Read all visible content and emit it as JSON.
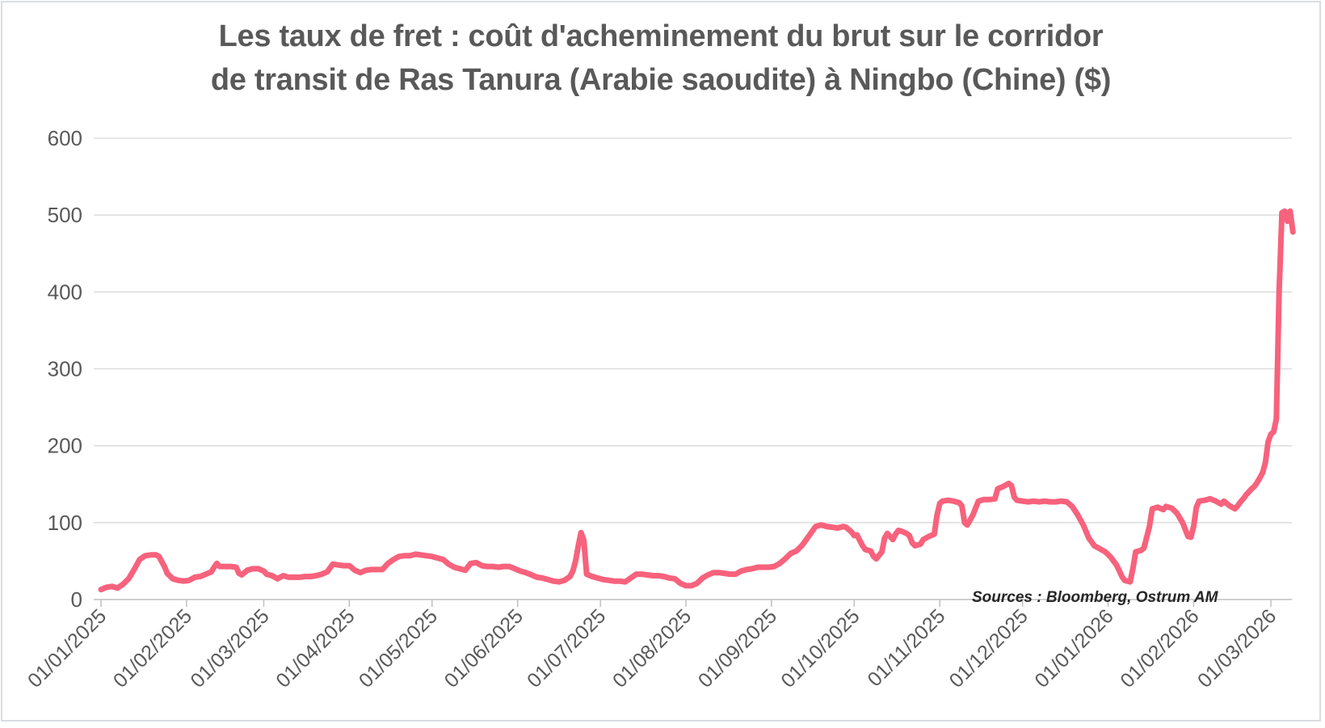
{
  "window": {
    "background": "#ffffff",
    "frame_border_color": "#d9dce0"
  },
  "title": {
    "line1": "Les taux de fret : coût d'acheminement du brut sur le corridor",
    "line2": "de transit de Ras Tanura (Arabie saoudite) à Ningbo (Chine) ($)",
    "color": "#595959"
  },
  "source_note": {
    "text": "Sources : Bloomberg, Ostrum AM",
    "color": "#262626"
  },
  "chart_data": {
    "type": "line",
    "title": "Les taux de fret : coût d'acheminement du brut sur le corridor de transit de Ras Tanura (Arabie saoudite) à Ningbo (Chine) ($)",
    "unit": "$",
    "grid": "horizontal",
    "legend": "none",
    "colors": {
      "line": "#f7627c",
      "gridline": "#d9d9d9",
      "axis": "#bfbfbf",
      "tick_label": "#595959"
    },
    "y_axis": {
      "ticks": [
        0,
        100,
        200,
        300,
        400,
        500,
        600
      ],
      "range": [
        0,
        600
      ]
    },
    "x_axis": {
      "tick_labels": [
        "01/01/2025",
        "01/02/2025",
        "01/03/2025",
        "01/04/2025",
        "01/05/2025",
        "01/06/2025",
        "01/07/2025",
        "01/08/2025",
        "01/09/2025",
        "01/10/2025",
        "01/11/2025",
        "01/12/2025",
        "01/01/2026",
        "01/02/2026",
        "01/03/2026"
      ],
      "range": [
        "01/01/2025",
        "09/03/2026"
      ]
    },
    "series": [
      {
        "dates": [
          "2025-01-01",
          "2025-01-03",
          "2025-01-05",
          "2025-01-07",
          "2025-01-09",
          "2025-01-11",
          "2025-01-13",
          "2025-01-15",
          "2025-01-17",
          "2025-01-19",
          "2025-01-21",
          "2025-01-22",
          "2025-01-24",
          "2025-01-25",
          "2025-01-27",
          "2025-01-29",
          "2025-01-31",
          "2025-02-02",
          "2025-02-04",
          "2025-02-06",
          "2025-02-08",
          "2025-02-10",
          "2025-02-11",
          "2025-02-12",
          "2025-02-13",
          "2025-02-15",
          "2025-02-17",
          "2025-02-19",
          "2025-02-20",
          "2025-02-21",
          "2025-02-23",
          "2025-02-25",
          "2025-02-27",
          "2025-03-01",
          "2025-03-02",
          "2025-03-04",
          "2025-03-06",
          "2025-03-08",
          "2025-03-10",
          "2025-03-12",
          "2025-03-14",
          "2025-03-16",
          "2025-03-18",
          "2025-03-20",
          "2025-03-22",
          "2025-03-24",
          "2025-03-26",
          "2025-03-28",
          "2025-03-30",
          "2025-04-01",
          "2025-04-03",
          "2025-04-05",
          "2025-04-07",
          "2025-04-09",
          "2025-04-11",
          "2025-04-13",
          "2025-04-15",
          "2025-04-17",
          "2025-04-19",
          "2025-04-21",
          "2025-04-23",
          "2025-04-25",
          "2025-04-27",
          "2025-04-29",
          "2025-05-01",
          "2025-05-03",
          "2025-05-05",
          "2025-05-07",
          "2025-05-09",
          "2025-05-11",
          "2025-05-13",
          "2025-05-15",
          "2025-05-17",
          "2025-05-19",
          "2025-05-21",
          "2025-05-23",
          "2025-05-25",
          "2025-05-27",
          "2025-05-29",
          "2025-05-31",
          "2025-06-02",
          "2025-06-04",
          "2025-06-06",
          "2025-06-08",
          "2025-06-10",
          "2025-06-12",
          "2025-06-14",
          "2025-06-16",
          "2025-06-18",
          "2025-06-20",
          "2025-06-21",
          "2025-06-22",
          "2025-06-23",
          "2025-06-24",
          "2025-06-25",
          "2025-06-26",
          "2025-06-28",
          "2025-06-30",
          "2025-07-02",
          "2025-07-04",
          "2025-07-06",
          "2025-07-08",
          "2025-07-10",
          "2025-07-12",
          "2025-07-14",
          "2025-07-16",
          "2025-07-18",
          "2025-07-20",
          "2025-07-22",
          "2025-07-24",
          "2025-07-26",
          "2025-07-28",
          "2025-07-30",
          "2025-08-01",
          "2025-08-03",
          "2025-08-05",
          "2025-08-07",
          "2025-08-09",
          "2025-08-11",
          "2025-08-13",
          "2025-08-15",
          "2025-08-17",
          "2025-08-19",
          "2025-08-21",
          "2025-08-23",
          "2025-08-25",
          "2025-08-27",
          "2025-08-29",
          "2025-08-31",
          "2025-09-02",
          "2025-09-04",
          "2025-09-06",
          "2025-09-08",
          "2025-09-10",
          "2025-09-12",
          "2025-09-14",
          "2025-09-16",
          "2025-09-17",
          "2025-09-19",
          "2025-09-21",
          "2025-09-23",
          "2025-09-25",
          "2025-09-27",
          "2025-09-28",
          "2025-09-30",
          "2025-10-01",
          "2025-10-02",
          "2025-10-04",
          "2025-10-05",
          "2025-10-07",
          "2025-10-08",
          "2025-10-09",
          "2025-10-11",
          "2025-10-12",
          "2025-10-13",
          "2025-10-15",
          "2025-10-16",
          "2025-10-17",
          "2025-10-18",
          "2025-10-20",
          "2025-10-21",
          "2025-10-22",
          "2025-10-23",
          "2025-10-25",
          "2025-10-26",
          "2025-10-28",
          "2025-10-30",
          "2025-10-31",
          "2025-11-01",
          "2025-11-02",
          "2025-11-04",
          "2025-11-06",
          "2025-11-08",
          "2025-11-09",
          "2025-11-10",
          "2025-11-11",
          "2025-11-13",
          "2025-11-15",
          "2025-11-17",
          "2025-11-19",
          "2025-11-21",
          "2025-11-22",
          "2025-11-24",
          "2025-11-25",
          "2025-11-26",
          "2025-11-27",
          "2025-11-28",
          "2025-11-29",
          "2025-12-01",
          "2025-12-03",
          "2025-12-05",
          "2025-12-07",
          "2025-12-09",
          "2025-12-11",
          "2025-12-13",
          "2025-12-15",
          "2025-12-17",
          "2025-12-19",
          "2025-12-21",
          "2025-12-23",
          "2025-12-25",
          "2025-12-27",
          "2025-12-29",
          "2025-12-31",
          "2026-01-02",
          "2026-01-04",
          "2026-01-05",
          "2026-01-06",
          "2026-01-07",
          "2026-01-09",
          "2026-01-10",
          "2026-01-11",
          "2026-01-13",
          "2026-01-14",
          "2026-01-16",
          "2026-01-17",
          "2026-01-19",
          "2026-01-21",
          "2026-01-22",
          "2026-01-24",
          "2026-01-26",
          "2026-01-28",
          "2026-01-29",
          "2026-01-30",
          "2026-01-31",
          "2026-02-01",
          "2026-02-02",
          "2026-02-03",
          "2026-02-05",
          "2026-02-07",
          "2026-02-09",
          "2026-02-11",
          "2026-02-12",
          "2026-02-14",
          "2026-02-16",
          "2026-02-17",
          "2026-02-18",
          "2026-02-19",
          "2026-02-20",
          "2026-02-21",
          "2026-02-22",
          "2026-02-23",
          "2026-02-24",
          "2026-02-25",
          "2026-02-26",
          "2026-02-27",
          "2026-02-28",
          "2026-03-01",
          "2026-03-02",
          "2026-03-03",
          "2026-03-04",
          "2026-03-05",
          "2026-03-06",
          "2026-03-07",
          "2026-03-08",
          "2026-03-09"
        ],
        "values": [
          13,
          16,
          17,
          15,
          20,
          27,
          39,
          52,
          57,
          58,
          58,
          56,
          43,
          34,
          27,
          25,
          24,
          25,
          29,
          30,
          33,
          36,
          42,
          47,
          43,
          43,
          43,
          42,
          34,
          32,
          38,
          40,
          40,
          37,
          33,
          31,
          27,
          31,
          29,
          29,
          29,
          30,
          30,
          31,
          33,
          36,
          46,
          45,
          44,
          44,
          38,
          35,
          38,
          39,
          39,
          39,
          47,
          52,
          56,
          57,
          57,
          59,
          58,
          57,
          56,
          54,
          52,
          46,
          42,
          40,
          38,
          47,
          48,
          44,
          43,
          43,
          42,
          43,
          43,
          40,
          37,
          35,
          32,
          29,
          28,
          26,
          24,
          23,
          25,
          30,
          37,
          50,
          70,
          87,
          77,
          33,
          30,
          28,
          26,
          25,
          24,
          24,
          23,
          28,
          33,
          33,
          32,
          31,
          31,
          30,
          28,
          27,
          21,
          18,
          18,
          21,
          28,
          32,
          35,
          35,
          34,
          33,
          33,
          37,
          39,
          40,
          42,
          42,
          42,
          43,
          47,
          53,
          60,
          63,
          70,
          80,
          90,
          95,
          97,
          95,
          94,
          93,
          95,
          94,
          88,
          83,
          84,
          70,
          65,
          63,
          56,
          53,
          62,
          80,
          86,
          78,
          85,
          90,
          89,
          86,
          83,
          74,
          70,
          72,
          78,
          82,
          85,
          110,
          125,
          128,
          129,
          128,
          126,
          122,
          100,
          97,
          110,
          128,
          130,
          130,
          131,
          144,
          147,
          149,
          151,
          148,
          133,
          129,
          128,
          127,
          128,
          127,
          128,
          127,
          127,
          128,
          127,
          121,
          110,
          97,
          80,
          70,
          66,
          62,
          55,
          45,
          38,
          30,
          25,
          23,
          40,
          62,
          64,
          67,
          95,
          118,
          120,
          117,
          121,
          119,
          112,
          100,
          91,
          82,
          81,
          95,
          120,
          128,
          129,
          131,
          128,
          124,
          128,
          122,
          118,
          122,
          127,
          131,
          136,
          140,
          144,
          147,
          152,
          158,
          165,
          178,
          205,
          215,
          218,
          235,
          400,
          503,
          505,
          492,
          505,
          478
        ]
      }
    ]
  }
}
